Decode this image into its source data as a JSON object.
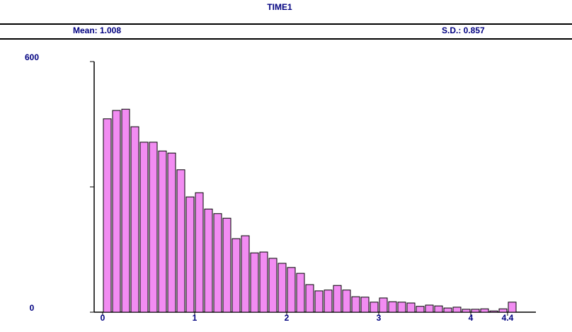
{
  "chart_data": {
    "type": "histogram",
    "title": "TIME1",
    "stats": [
      {
        "label": "Mean: 1.008"
      },
      {
        "label": "S.D.: 0.857"
      }
    ],
    "bins": [
      0,
      0.1,
      0.2,
      0.3,
      0.4,
      0.5,
      0.6,
      0.7,
      0.8,
      0.9,
      1,
      1.1,
      1.2,
      1.3,
      1.4,
      1.5,
      1.6,
      1.7,
      1.8,
      1.9,
      2,
      2.1,
      2.2,
      2.3,
      2.4,
      2.5,
      2.6,
      2.7,
      2.8,
      2.9,
      3,
      3.1,
      3.2,
      3.3,
      3.4,
      3.5,
      3.6,
      3.7,
      3.8,
      3.9,
      4,
      4.1,
      4.2,
      4.3,
      4.4,
      4.5
    ],
    "values": [
      463,
      483,
      486,
      444,
      407,
      407,
      386,
      381,
      341,
      276,
      286,
      247,
      236,
      225,
      176,
      183,
      142,
      144,
      129,
      117,
      107,
      93,
      66,
      51,
      53,
      64,
      53,
      37,
      36,
      24,
      34,
      25,
      24,
      22,
      14,
      17,
      15,
      10,
      12,
      7,
      7,
      8,
      3,
      8,
      24
    ],
    "color": "#f28cf2",
    "xlim": [
      0,
      4.5
    ],
    "xticks": [
      0,
      1,
      2,
      3,
      4,
      4.4
    ],
    "ylim": [
      0,
      600
    ],
    "yticks": [
      0,
      {
        "value": 300,
        "label": null
      },
      600
    ]
  }
}
